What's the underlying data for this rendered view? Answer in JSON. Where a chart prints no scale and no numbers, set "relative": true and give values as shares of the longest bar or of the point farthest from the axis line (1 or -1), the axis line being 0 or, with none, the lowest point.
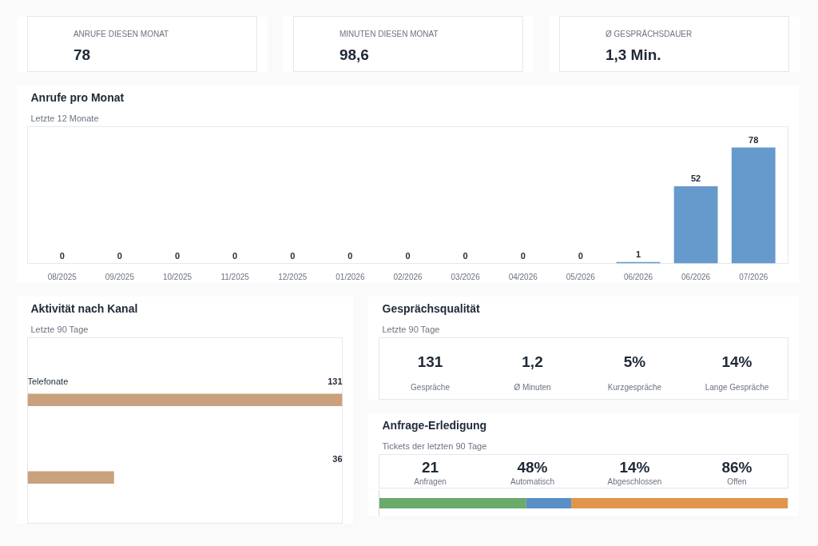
{
  "chart_data": [
    {
      "type": "other",
      "title": "ANRUFE DIESEN MONAT",
      "annotations": [
        "78"
      ]
    },
    {
      "type": "other",
      "title": "MINUTEN DIESEN MONAT",
      "annotations": [
        "98,6"
      ]
    },
    {
      "type": "other",
      "title": "Ø GESPRÄCHSDAUER",
      "annotations": [
        "1,3 Min."
      ]
    },
    {
      "type": "bar",
      "title": "Anrufe pro Monat",
      "subtitle": "Letzte 12 Monate",
      "categories": [
        "08/2025",
        "09/2025",
        "10/2025",
        "11/2025",
        "12/2025",
        "01/2026",
        "02/2026",
        "03/2026",
        "04/2026",
        "05/2026",
        "06/2026",
        "06/2026",
        "07/2026"
      ],
      "values": [
        0,
        0,
        0,
        0,
        0,
        0,
        0,
        0,
        0,
        0,
        1,
        52,
        78
      ],
      "color": "#6699cc",
      "data_labels": true
    },
    {
      "type": "bar",
      "orientation": "horizontal",
      "title": "Aktivität nach Kanal",
      "subtitle": "Letzte 90 Tage",
      "categories": [
        "Telefonate",
        null
      ],
      "values": [
        131,
        36
      ],
      "color": "#c9a17e",
      "data_labels": true
    },
    {
      "type": "other",
      "title": "Gesprächsqualität",
      "subtitle": "Letzte 90 Tage",
      "annotations": [
        "131",
        "Gespräche",
        "1,2",
        "Ø Minuten",
        "5%",
        "Kurzgespräche",
        "14%",
        "Lange Gespräche"
      ]
    },
    {
      "type": "other",
      "title": "Anfrage-Erledigung",
      "subtitle": "Tickets der letzten 90 Tage",
      "annotations": [
        "21",
        "Anfragen",
        "48%",
        "Automatisch",
        "14%",
        "Abgeschlossen",
        "86%",
        "Offen"
      ]
    },
    {
      "type": "bar",
      "orientation": "horizontal",
      "stacked": true,
      "relative": true,
      "categories": [
        null
      ],
      "series": [
        {
          "color": "#6aaa6a",
          "values": [
            0.36
          ]
        },
        {
          "color": "#5b8fc7",
          "values": [
            0.11
          ]
        },
        {
          "color": "#e0954a",
          "values": [
            0.53
          ]
        }
      ]
    }
  ]
}
